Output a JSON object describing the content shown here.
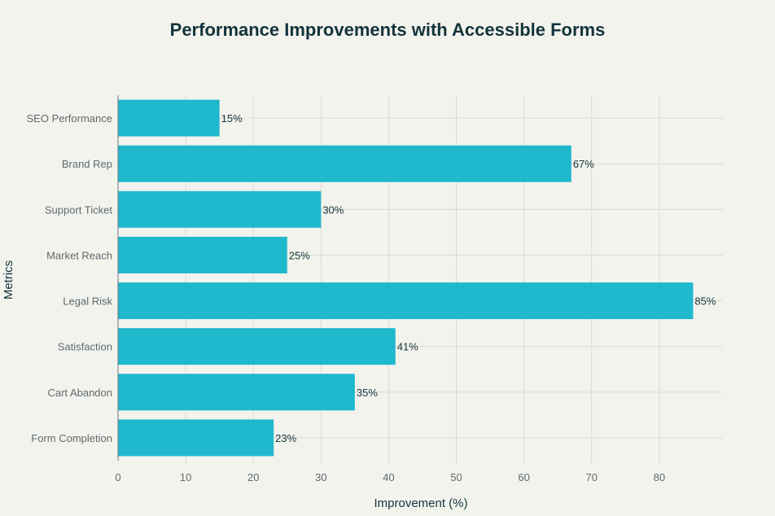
{
  "chart_data": {
    "type": "bar",
    "orientation": "horizontal",
    "title": "Performance Improvements with Accessible Forms",
    "xlabel": "Improvement (%)",
    "ylabel": "Metrics",
    "categories": [
      "SEO Performance",
      "Brand Rep",
      "Support Ticket",
      "Market Reach",
      "Legal Risk",
      "Satisfaction",
      "Cart Abandon",
      "Form Completion"
    ],
    "values": [
      15,
      67,
      30,
      25,
      85,
      41,
      35,
      23
    ],
    "data_labels": [
      "15%",
      "67%",
      "30%",
      "25%",
      "85%",
      "41%",
      "35%",
      "23%"
    ],
    "xlim": [
      0,
      89.4
    ],
    "xticks": [
      0,
      10,
      20,
      30,
      40,
      50,
      60,
      70,
      80
    ],
    "grid": true,
    "bar_color": "#1FB8CD",
    "background": "#F3F3EE"
  }
}
